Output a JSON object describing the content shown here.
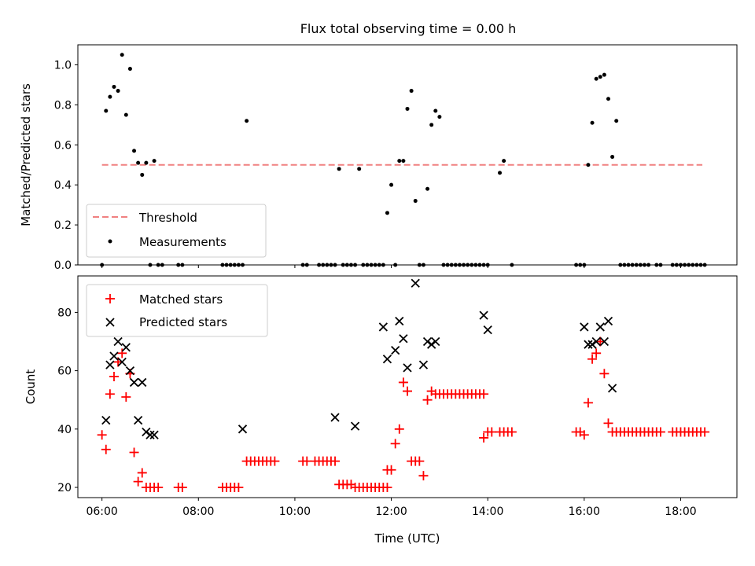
{
  "figure": {
    "title": "Flux total observing time = 0.00 h",
    "xlabel": "Time (UTC)"
  },
  "chart_data": [
    {
      "type": "scatter",
      "ylabel": "Matched/Predicted stars",
      "x_axis": "time (hours UTC)",
      "xlim": [
        "05:30",
        "19:10"
      ],
      "ylim": [
        0,
        1.1
      ],
      "yticks": [
        "0.0",
        "0.2",
        "0.4",
        "0.6",
        "0.8",
        "1.0"
      ],
      "xticks": [
        "06:00",
        "08:00",
        "10:00",
        "12:00",
        "14:00",
        "16:00",
        "18:00"
      ],
      "show_xtick_labels": false,
      "legend_position": "lower-left",
      "threshold": {
        "name": "Threshold",
        "value": 0.5,
        "x_range": [
          "06:00",
          "18:27"
        ],
        "color": "#f08080"
      },
      "series": [
        {
          "name": "Measurements",
          "marker": "dot",
          "color": "#000000",
          "x": [
            "06:00",
            "06:05",
            "06:10",
            "06:15",
            "06:20",
            "06:25",
            "06:30",
            "06:35",
            "06:40",
            "06:45",
            "06:50",
            "06:55",
            "07:00",
            "07:05",
            "07:10",
            "07:15",
            "07:35",
            "07:40",
            "08:30",
            "08:35",
            "08:40",
            "08:45",
            "08:50",
            "08:55",
            "09:00",
            "10:10",
            "10:15",
            "10:30",
            "10:35",
            "10:40",
            "10:45",
            "10:50",
            "10:55",
            "11:00",
            "11:05",
            "11:10",
            "11:15",
            "11:20",
            "11:25",
            "11:30",
            "11:35",
            "11:40",
            "11:45",
            "11:50",
            "11:55",
            "12:00",
            "12:05",
            "12:10",
            "12:15",
            "12:20",
            "12:25",
            "12:30",
            "12:35",
            "12:40",
            "12:45",
            "12:50",
            "12:55",
            "13:00",
            "13:05",
            "13:10",
            "13:15",
            "13:20",
            "13:25",
            "13:30",
            "13:35",
            "13:40",
            "13:45",
            "13:50",
            "13:55",
            "14:00",
            "14:15",
            "14:20",
            "14:30",
            "15:50",
            "15:55",
            "16:00",
            "16:05",
            "16:10",
            "16:15",
            "16:20",
            "16:25",
            "16:30",
            "16:35",
            "16:40",
            "16:45",
            "16:50",
            "16:55",
            "17:00",
            "17:05",
            "17:10",
            "17:15",
            "17:20",
            "17:30",
            "17:35",
            "17:50",
            "17:55",
            "18:00",
            "18:05",
            "18:10",
            "18:15",
            "18:20",
            "18:25",
            "18:30"
          ],
          "y": [
            0.0,
            0.77,
            0.84,
            0.89,
            0.87,
            1.05,
            0.75,
            0.98,
            0.57,
            0.51,
            0.45,
            0.51,
            0.0,
            0.52,
            0.0,
            0.0,
            0.0,
            0.0,
            0.0,
            0.0,
            0.0,
            0.0,
            0.0,
            0.0,
            0.72,
            0.0,
            0.0,
            0.0,
            0.0,
            0.0,
            0.0,
            0.0,
            0.48,
            0.0,
            0.0,
            0.0,
            0.0,
            0.48,
            0.0,
            0.0,
            0.0,
            0.0,
            0.0,
            0.0,
            0.26,
            0.4,
            0.0,
            0.52,
            0.52,
            0.78,
            0.87,
            0.32,
            0.0,
            0.0,
            0.38,
            0.7,
            0.77,
            0.74,
            0.0,
            0.0,
            0.0,
            0.0,
            0.0,
            0.0,
            0.0,
            0.0,
            0.0,
            0.0,
            0.0,
            0.0,
            0.46,
            0.52,
            0.0,
            0.0,
            0.0,
            0.0,
            0.5,
            0.71,
            0.93,
            0.94,
            0.95,
            0.83,
            0.54,
            0.72,
            0.0,
            0.0,
            0.0,
            0.0,
            0.0,
            0.0,
            0.0,
            0.0,
            0.0,
            0.0,
            0.0,
            0.0,
            0.0,
            0.0,
            0.0,
            0.0,
            0.0,
            0.0,
            0.0
          ]
        }
      ]
    },
    {
      "type": "scatter",
      "ylabel": "Count",
      "x_axis": "time (hours UTC)",
      "xlim": [
        "05:30",
        "19:10"
      ],
      "ylim": [
        16.5,
        92.5
      ],
      "yticks": [
        "20",
        "40",
        "60",
        "80"
      ],
      "xticks": [
        "06:00",
        "08:00",
        "10:00",
        "12:00",
        "14:00",
        "16:00",
        "18:00"
      ],
      "legend_position": "upper-left",
      "series": [
        {
          "name": "Matched stars",
          "marker": "plus",
          "color": "#ff0000",
          "x": [
            "06:00",
            "06:05",
            "06:10",
            "06:15",
            "06:20",
            "06:25",
            "06:30",
            "06:35",
            "06:40",
            "06:45",
            "06:50",
            "06:55",
            "07:00",
            "07:05",
            "07:10",
            "07:35",
            "07:40",
            "08:30",
            "08:35",
            "08:40",
            "08:45",
            "08:50",
            "09:00",
            "09:05",
            "09:10",
            "09:15",
            "09:20",
            "09:25",
            "09:30",
            "09:35",
            "10:10",
            "10:15",
            "10:25",
            "10:30",
            "10:35",
            "10:40",
            "10:45",
            "10:50",
            "10:55",
            "11:00",
            "11:05",
            "11:10",
            "11:15",
            "11:20",
            "11:25",
            "11:30",
            "11:35",
            "11:40",
            "11:45",
            "11:50",
            "11:55",
            "11:55",
            "12:00",
            "12:05",
            "12:10",
            "12:15",
            "12:20",
            "12:25",
            "12:30",
            "12:35",
            "12:40",
            "12:45",
            "12:50",
            "12:55",
            "13:00",
            "13:05",
            "13:10",
            "13:15",
            "13:20",
            "13:25",
            "13:30",
            "13:35",
            "13:40",
            "13:45",
            "13:50",
            "13:55",
            "13:55",
            "14:00",
            "14:05",
            "14:15",
            "14:20",
            "14:25",
            "14:30",
            "15:50",
            "15:55",
            "16:00",
            "16:05",
            "16:10",
            "16:15",
            "16:20",
            "16:25",
            "16:30",
            "16:35",
            "16:40",
            "16:45",
            "16:50",
            "16:55",
            "17:00",
            "17:05",
            "17:10",
            "17:15",
            "17:20",
            "17:25",
            "17:30",
            "17:35",
            "17:50",
            "17:55",
            "18:00",
            "18:05",
            "18:10",
            "18:15",
            "18:20",
            "18:25",
            "18:30"
          ],
          "y": [
            38,
            33,
            52,
            58,
            63,
            66,
            51,
            59,
            32,
            22,
            25,
            20,
            20,
            20,
            20,
            20,
            20,
            20,
            20,
            20,
            20,
            20,
            29,
            29,
            29,
            29,
            29,
            29,
            29,
            29,
            29,
            29,
            29,
            29,
            29,
            29,
            29,
            29,
            21,
            21,
            21,
            21,
            20,
            20,
            20,
            20,
            20,
            20,
            20,
            20,
            20,
            26,
            26,
            35,
            40,
            56,
            53,
            29,
            29,
            29,
            24,
            50,
            53,
            52,
            52,
            52,
            52,
            52,
            52,
            52,
            52,
            52,
            52,
            52,
            52,
            52,
            37,
            39,
            39,
            39,
            39,
            39,
            39,
            39,
            39,
            38,
            49,
            64,
            66,
            70,
            59,
            42,
            39,
            39,
            39,
            39,
            39,
            39,
            39,
            39,
            39,
            39,
            39,
            39,
            39,
            39,
            39,
            39,
            39,
            39,
            39,
            39,
            39,
            39
          ]
        },
        {
          "name": "Predicted stars",
          "marker": "x",
          "color": "#000000",
          "x": [
            "06:05",
            "06:10",
            "06:15",
            "06:20",
            "06:25",
            "06:30",
            "06:35",
            "06:40",
            "06:45",
            "06:50",
            "06:55",
            "07:00",
            "07:05",
            "08:55",
            "10:50",
            "11:15",
            "11:50",
            "11:55",
            "12:05",
            "12:10",
            "12:15",
            "12:20",
            "12:30",
            "12:40",
            "12:45",
            "12:50",
            "12:55",
            "13:55",
            "14:00",
            "16:00",
            "16:05",
            "16:10",
            "16:15",
            "16:20",
            "16:25",
            "16:30",
            "16:35"
          ],
          "y": [
            43,
            62,
            65,
            70,
            63,
            68,
            60,
            56,
            43,
            56,
            39,
            38,
            38,
            40,
            44,
            41,
            75,
            64,
            67,
            77,
            71,
            61,
            90,
            62,
            70,
            69,
            70,
            79,
            74,
            75,
            69,
            69,
            70,
            75,
            70,
            77,
            54
          ]
        }
      ]
    }
  ]
}
